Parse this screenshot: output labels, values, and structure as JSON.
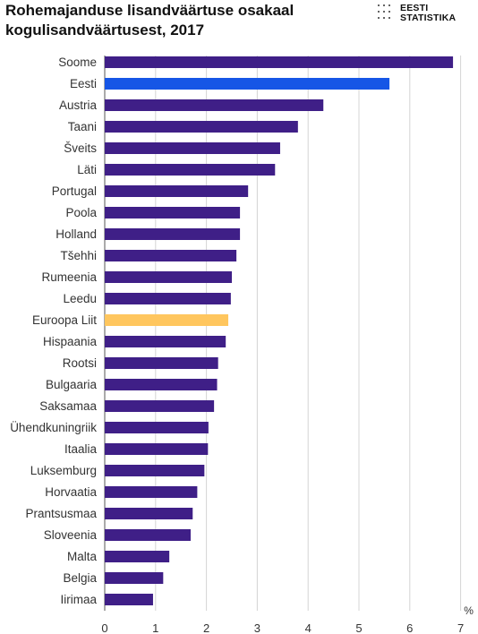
{
  "header": {
    "title_line1": "Rohemajanduse lisandväärtuse osakaal",
    "title_line2": "kogulisandväärtusest, 2017"
  },
  "logo": {
    "line1": "EESTI",
    "line2": "STATISTIKA",
    "icon": "dot-grid-icon"
  },
  "colors": {
    "default_bar": "#3f1f87",
    "estonia_bar": "#1656e6",
    "eu_bar": "#ffc65e",
    "grid": "#d4d4d4",
    "axis": "#555555"
  },
  "chart_data": {
    "type": "bar",
    "orientation": "horizontal",
    "title": "Rohemajanduse lisandväärtuse osakaal kogulisandväärtusest, 2017",
    "categories": [
      "Soome",
      "Eesti",
      "Austria",
      "Taani",
      "Šveits",
      "Läti",
      "Portugal",
      "Poola",
      "Holland",
      "Tšehhi",
      "Rumeenia",
      "Leedu",
      "Euroopa Liit",
      "Hispaania",
      "Rootsi",
      "Bulgaaria",
      "Saksamaa",
      "Ühendkuningriik",
      "Itaalia",
      "Luksemburg",
      "Horvaatia",
      "Prantsusmaa",
      "Sloveenia",
      "Malta",
      "Belgia",
      "Iirimaa"
    ],
    "values": [
      6.85,
      5.6,
      4.3,
      3.8,
      3.45,
      3.35,
      2.82,
      2.66,
      2.66,
      2.59,
      2.5,
      2.48,
      2.43,
      2.38,
      2.23,
      2.21,
      2.15,
      2.04,
      2.03,
      1.96,
      1.82,
      1.73,
      1.69,
      1.27,
      1.15,
      0.95
    ],
    "highlight": {
      "Eesti": "estonia_bar",
      "Euroopa Liit": "eu_bar"
    },
    "xlim": [
      0,
      7
    ],
    "xticks": [
      "0",
      "1",
      "2",
      "3",
      "4",
      "5",
      "6",
      "7"
    ],
    "xunit": "%",
    "grid": true
  }
}
